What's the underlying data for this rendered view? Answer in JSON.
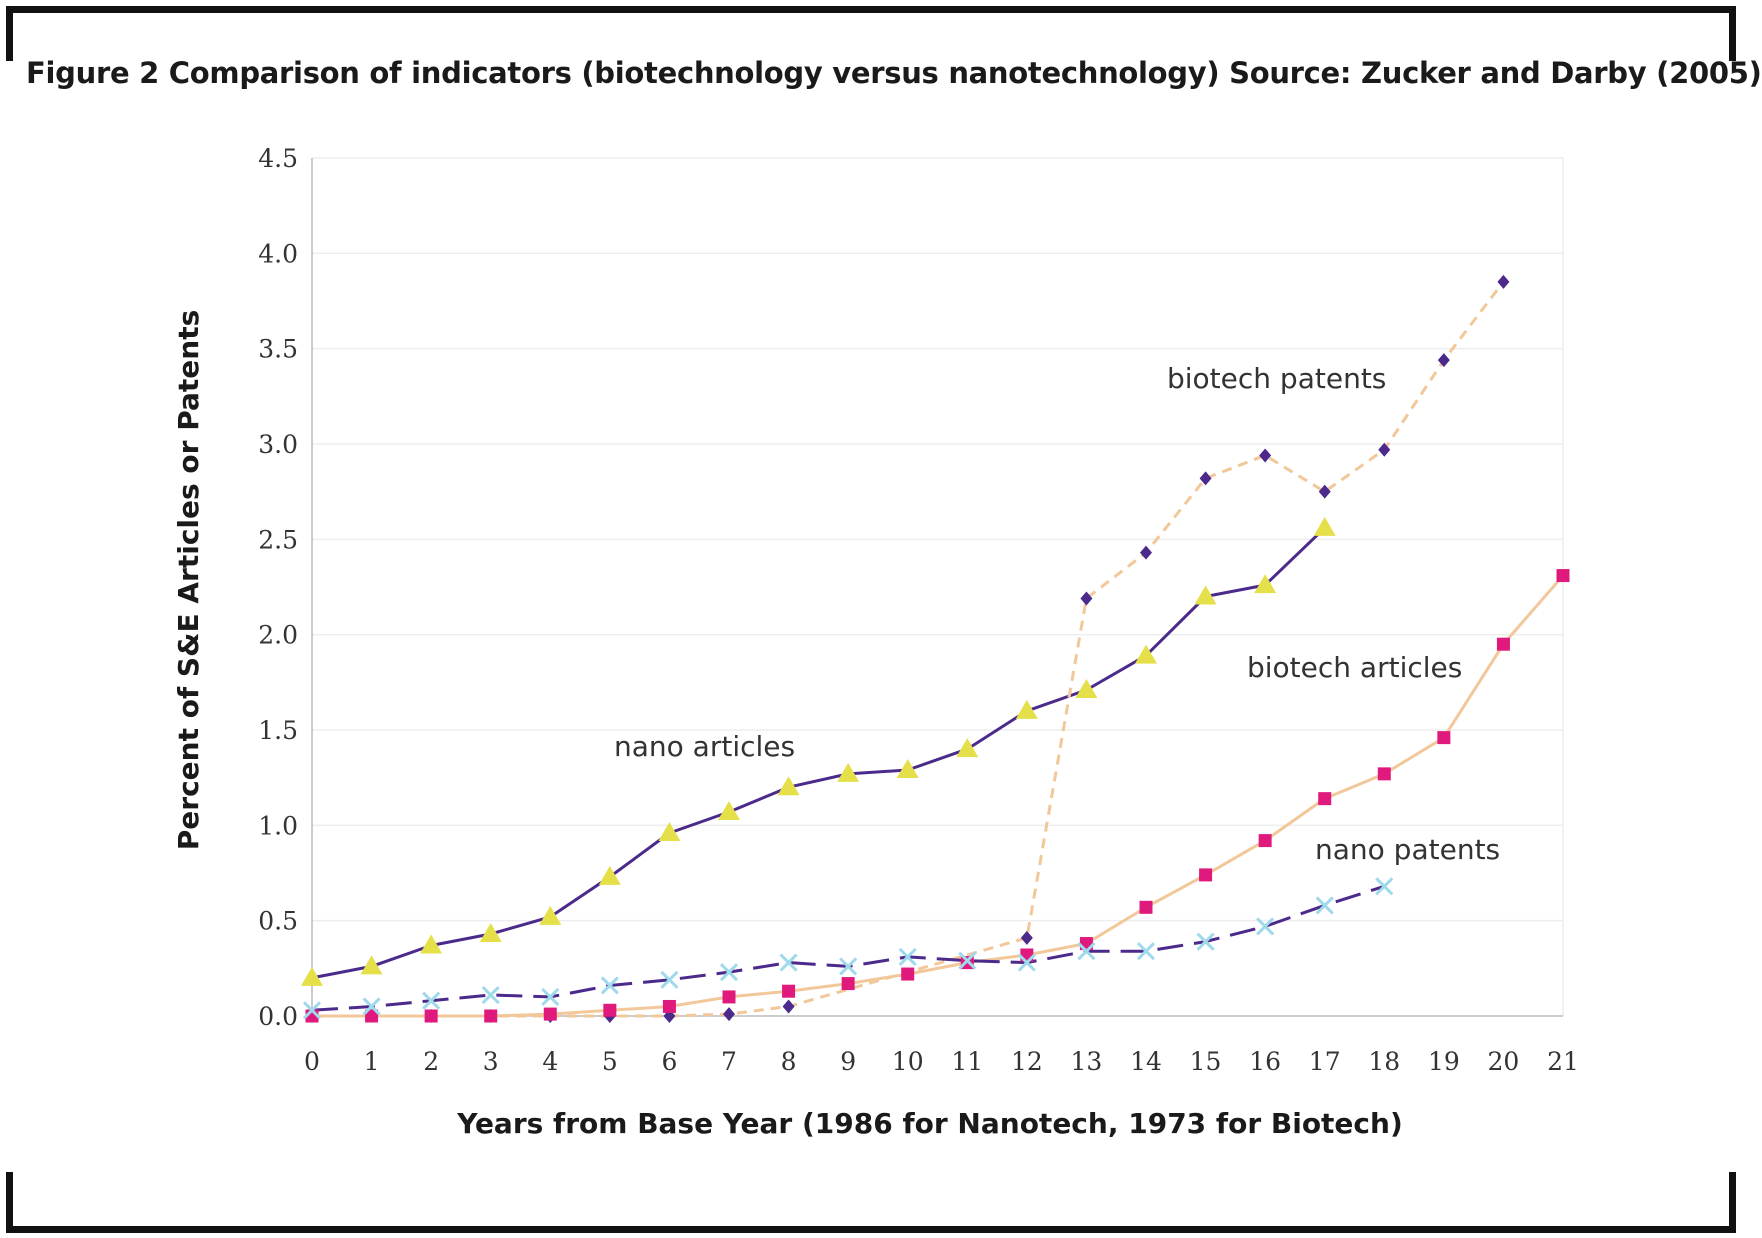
{
  "caption": "Figure 2  Comparison of indicators (biotechnology versus nanotechnology) Source: Zucker and Darby (2005)",
  "chart_data": {
    "type": "line",
    "title": "",
    "xlabel": "Years from Base Year (1986 for Nanotech, 1973 for Biotech)",
    "ylabel": "Percent of S&E Articles or Patents",
    "xlim": [
      0,
      21
    ],
    "ylim": [
      0,
      4.5
    ],
    "x_ticks": [
      "0",
      "1",
      "2",
      "3",
      "4",
      "5",
      "6",
      "7",
      "8",
      "9",
      "10",
      "11",
      "12",
      "13",
      "14",
      "15",
      "16",
      "17",
      "18",
      "19",
      "20",
      "21"
    ],
    "y_ticks": [
      "0.0",
      "0.5",
      "1.0",
      "1.5",
      "2.0",
      "2.5",
      "3.0",
      "3.5",
      "4.0",
      "4.5"
    ],
    "grid": true,
    "legend": "none",
    "series": [
      {
        "name": "nano articles",
        "line_color": "#4b2a8c",
        "marker_color": "#e5e04a",
        "marker": "triangle",
        "dash": "solid",
        "x": [
          0,
          1,
          2,
          3,
          4,
          5,
          6,
          7,
          8,
          9,
          10,
          11,
          12,
          13,
          14,
          15,
          16,
          17
        ],
        "values": [
          0.2,
          0.26,
          0.37,
          0.43,
          0.52,
          0.73,
          0.96,
          1.07,
          1.2,
          1.27,
          1.29,
          1.4,
          1.6,
          1.71,
          1.89,
          2.2,
          2.26,
          2.56
        ]
      },
      {
        "name": "biotech patents",
        "line_color": "#f2c79a",
        "marker_color": "#4b2a8c",
        "marker": "diamond",
        "dash": "dashed",
        "x": [
          0,
          1,
          2,
          3,
          4,
          5,
          6,
          7,
          8,
          12,
          13,
          14,
          15,
          16,
          17,
          18,
          19,
          20
        ],
        "values": [
          0.0,
          0.0,
          0.0,
          0.0,
          0.0,
          0.0,
          0.0,
          0.01,
          0.05,
          0.41,
          2.19,
          2.43,
          2.82,
          2.94,
          2.75,
          2.97,
          3.44,
          3.85
        ]
      },
      {
        "name": "biotech articles",
        "line_color": "#f2c79a",
        "marker_color": "#e0197d",
        "marker": "square",
        "dash": "solid",
        "x": [
          0,
          1,
          2,
          3,
          4,
          5,
          6,
          7,
          8,
          9,
          10,
          11,
          12,
          13,
          14,
          15,
          16,
          17,
          18,
          19,
          20,
          21
        ],
        "values": [
          0.0,
          0.0,
          0.0,
          0.0,
          0.01,
          0.03,
          0.05,
          0.1,
          0.13,
          0.17,
          0.22,
          0.28,
          0.32,
          0.38,
          0.57,
          0.74,
          0.92,
          1.14,
          1.27,
          1.46,
          1.95,
          2.31
        ]
      },
      {
        "name": "nano patents",
        "line_color": "#4b2a8c",
        "marker_color": "#9fd9ec",
        "marker": "x",
        "dash": "longdash",
        "x": [
          0,
          1,
          2,
          3,
          4,
          5,
          6,
          7,
          8,
          9,
          10,
          11,
          12,
          13,
          14,
          15,
          16,
          17,
          18
        ],
        "values": [
          0.03,
          0.05,
          0.08,
          0.11,
          0.1,
          0.16,
          0.19,
          0.23,
          0.28,
          0.26,
          0.31,
          0.29,
          0.28,
          0.34,
          0.34,
          0.39,
          0.47,
          0.58,
          0.68
        ]
      }
    ],
    "annotations": [
      "biotech patents",
      "biotech articles",
      "nano articles",
      "nano patents"
    ],
    "colors": {
      "grid": "#eeeeee",
      "axis": "#bbbbbb",
      "frame": "#111111"
    }
  }
}
